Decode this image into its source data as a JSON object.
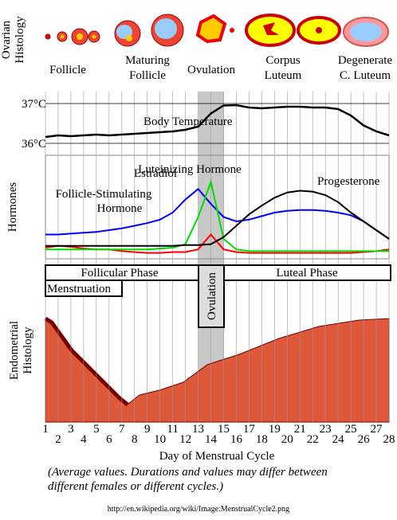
{
  "ovary": {
    "label": [
      "Ovarian",
      "Histology"
    ],
    "stages": [
      [
        "Follicle"
      ],
      [
        "Maturing",
        "Follicle"
      ],
      [
        "Ovulation"
      ],
      [
        "Corpus",
        "Luteum"
      ],
      [
        "Degenerate",
        "C. Luteum"
      ]
    ]
  },
  "temperature": {
    "label": "Body Temperature",
    "ticks": [
      {
        "value": 37,
        "label": "37°C"
      },
      {
        "value": 36,
        "label": "36°C"
      }
    ],
    "values": [
      36.16,
      36.2,
      36.18,
      36.2,
      36.22,
      36.2,
      36.22,
      36.24,
      36.26,
      36.28,
      36.3,
      36.34,
      36.42,
      36.75,
      36.95,
      36.96,
      36.9,
      36.88,
      36.9,
      36.92,
      36.92,
      36.9,
      36.9,
      36.86,
      36.7,
      36.45,
      36.3,
      36.2
    ]
  },
  "hormones": {
    "label": [
      "Hormones"
    ],
    "series": [
      {
        "name": [
          "Follicle-Stimulating",
          "Hormone"
        ],
        "color": "#ff0000",
        "values": [
          10,
          12,
          11,
          9,
          8,
          8,
          6,
          5,
          4,
          4,
          5,
          5,
          8,
          25,
          8,
          5,
          4,
          4,
          4,
          4,
          4,
          4,
          4,
          4,
          4,
          5,
          6,
          8
        ]
      },
      {
        "name": [
          "Estradiol"
        ],
        "color": "#0000ff",
        "values": [
          25,
          25,
          26,
          27,
          28,
          30,
          32,
          35,
          38,
          42,
          50,
          65,
          77,
          60,
          45,
          40,
          42,
          46,
          50,
          52,
          53,
          53,
          52,
          50,
          47,
          40,
          30,
          20
        ]
      },
      {
        "name": [
          "Luteinizing  Hormone"
        ],
        "color": "#00dd00",
        "values": [
          8,
          8,
          8,
          8,
          8,
          8,
          8,
          8,
          8,
          9,
          10,
          14,
          45,
          85,
          20,
          8,
          6,
          6,
          6,
          6,
          6,
          6,
          6,
          6,
          6,
          6,
          6,
          6
        ]
      },
      {
        "name": [
          "Progesterone"
        ],
        "color": "#000000",
        "values": [
          12,
          12,
          12,
          12,
          12,
          12,
          12,
          12,
          12,
          12,
          12,
          13,
          13,
          14,
          22,
          35,
          48,
          58,
          67,
          73,
          75,
          74,
          70,
          62,
          50,
          40,
          30,
          20
        ]
      }
    ]
  },
  "phases": {
    "follicular": "Follicular Phase",
    "ovulation": "Ovulation",
    "luteal": "Luteal Phase",
    "menstruation": "Menstruation"
  },
  "endometrium": {
    "label": [
      "Endometrial",
      "Histology"
    ]
  },
  "days": [
    1,
    2,
    3,
    4,
    5,
    6,
    7,
    8,
    9,
    10,
    11,
    12,
    13,
    14,
    15,
    16,
    17,
    18,
    19,
    20,
    21,
    22,
    23,
    24,
    25,
    26,
    27,
    28
  ],
  "x_label": "Day of Menstrual Cycle",
  "note": [
    "(Average values. Durations and values may differ between",
    "different females or different cycles.)"
  ],
  "source": "http://en.wikipedia.org/wiki/Image:MenstrualCycle2.png"
}
